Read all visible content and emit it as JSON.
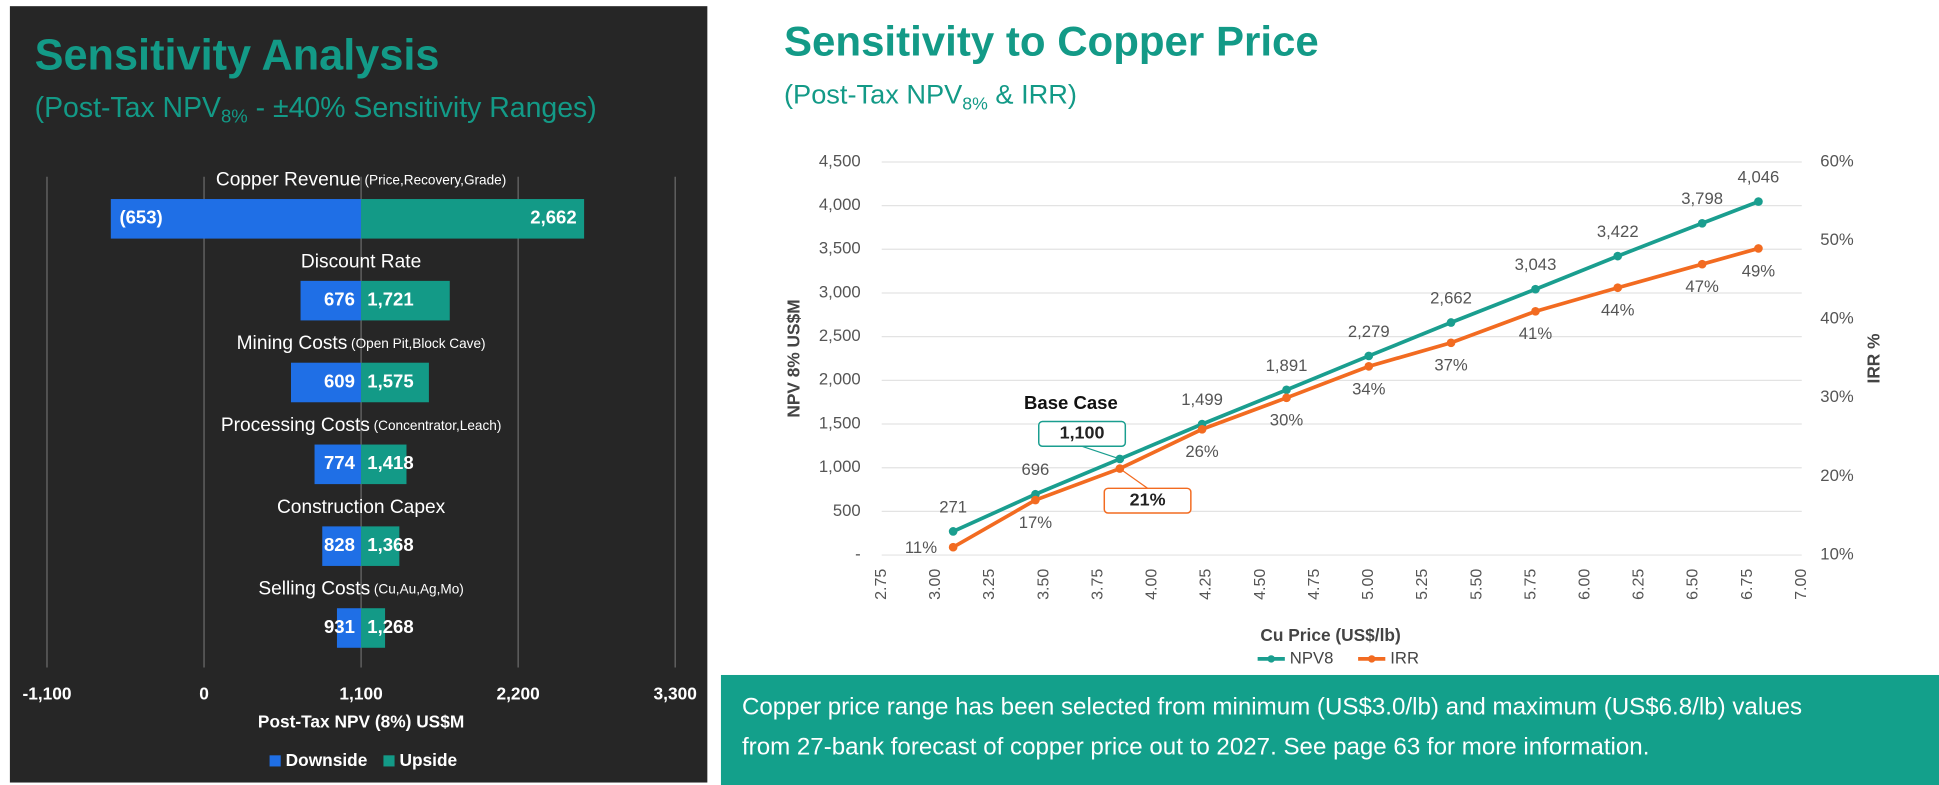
{
  "chart_data": [
    {
      "type": "tornado",
      "title": "Sensitivity Analysis",
      "subtitle": [
        "(Post-Tax NPV",
        "8%",
        " - ±40% Sensitivity Ranges)"
      ],
      "categories": [
        "Copper Revenue",
        "Discount Rate",
        "Mining Costs",
        "Processing Costs",
        "Construction Capex",
        "Selling Costs"
      ],
      "category_details": [
        "(Price,Recovery,Grade)",
        null,
        "(Open Pit,Block Cave)",
        "(Concentrator,Leach)",
        null,
        "(Cu,Au,Ag,Mo)"
      ],
      "base": 1100,
      "series": [
        {
          "name": "Downside",
          "color": "#1f6fe6",
          "values": [
            -653,
            676,
            609,
            774,
            828,
            931
          ],
          "value_labels": [
            "(653)",
            "676",
            "609",
            "774",
            "828",
            "931"
          ]
        },
        {
          "name": "Upside",
          "color": "#139a87",
          "values": [
            2662,
            1721,
            1575,
            1418,
            1368,
            1268
          ],
          "value_labels": [
            "2,662",
            "1,721",
            "1,575",
            "1,418",
            "1,368",
            "1,268"
          ]
        }
      ],
      "xlim": [
        -1100,
        3300
      ],
      "xticks": [
        {
          "value": -1100,
          "label": "-1,100"
        },
        0,
        {
          "value": 1100,
          "label": "1,100"
        },
        {
          "value": 2200,
          "label": "2,200"
        },
        {
          "value": 3300,
          "label": "3,300"
        }
      ],
      "xlabel": "Post-Tax NPV (8%) US$M",
      "grid": true,
      "legend": "bottom"
    },
    {
      "type": "line",
      "title": "Sensitivity to Copper Price",
      "subtitle": [
        "(Post-Tax NPV",
        "8%",
        " & IRR)"
      ],
      "x": [
        3.08,
        3.46,
        3.85,
        4.23,
        4.62,
        5.0,
        5.38,
        5.77,
        6.15,
        6.54,
        6.8
      ],
      "series": [
        {
          "name": "NPV8",
          "color": "#1a9e8f",
          "values": [
            271,
            696,
            1100,
            1499,
            1891,
            2279,
            2662,
            3043,
            3422,
            3798,
            4046
          ],
          "value_labels": [
            "271",
            "696",
            "1,100",
            "1,499",
            "1,891",
            "2,279",
            "2,662",
            "3,043",
            "3,422",
            "3,798",
            "4,046"
          ]
        },
        {
          "name": "IRR",
          "color": "#f26b21",
          "axis": "y2",
          "values": [
            11,
            17,
            21,
            26,
            30,
            34,
            37,
            41,
            44,
            47,
            49
          ],
          "value_labels": [
            "11%",
            "17%",
            "21%",
            "26%",
            "30%",
            "34%",
            "37%",
            "41%",
            "44%",
            "47%",
            "49%"
          ]
        }
      ],
      "annotation": "Base Case",
      "xlim": [
        2.75,
        7.0
      ],
      "xticks": [
        2.75,
        {
          "value": 3,
          "label": "3.00"
        },
        3.25,
        {
          "value": 3.5,
          "label": "3.50"
        },
        3.75,
        {
          "value": 4,
          "label": "4.00"
        },
        4.25,
        {
          "value": 4.5,
          "label": "4.50"
        },
        4.75,
        {
          "value": 5,
          "label": "5.00"
        },
        5.25,
        {
          "value": 5.5,
          "label": "5.50"
        },
        5.75,
        {
          "value": 6,
          "label": "6.00"
        },
        6.25,
        {
          "value": 6.5,
          "label": "6.50"
        },
        6.75,
        {
          "value": 7,
          "label": "7.00"
        }
      ],
      "ylim": [
        0,
        4500
      ],
      "yticks": [
        {
          "value": 0,
          "label": "-"
        },
        500,
        {
          "value": 1000,
          "label": "1,000"
        },
        {
          "value": 1500,
          "label": "1,500"
        },
        {
          "value": 2000,
          "label": "2,000"
        },
        {
          "value": 2500,
          "label": "2,500"
        },
        {
          "value": 3000,
          "label": "3,000"
        },
        {
          "value": 3500,
          "label": "3,500"
        },
        {
          "value": 4000,
          "label": "4,000"
        },
        {
          "value": 4500,
          "label": "4,500"
        }
      ],
      "y2lim": [
        10,
        60
      ],
      "y2ticks": [
        {
          "value": 10,
          "label": "10%"
        },
        {
          "value": 20,
          "label": "20%"
        },
        {
          "value": 30,
          "label": "30%"
        },
        {
          "value": 40,
          "label": "40%"
        },
        {
          "value": 50,
          "label": "50%"
        },
        {
          "value": 60,
          "label": "60%"
        }
      ],
      "xlabel": "Cu Price (US$/lb)",
      "ylabel": "NPV 8% US$M",
      "y2label": "IRR %",
      "grid": true,
      "legend": "bottom"
    }
  ],
  "footer": [
    "Copper price range has been selected from minimum (US$3.0/lb) and maximum (US$6.8/lb) values",
    "from 27-bank forecast of copper price out to 2027. See page 63 for more information."
  ]
}
